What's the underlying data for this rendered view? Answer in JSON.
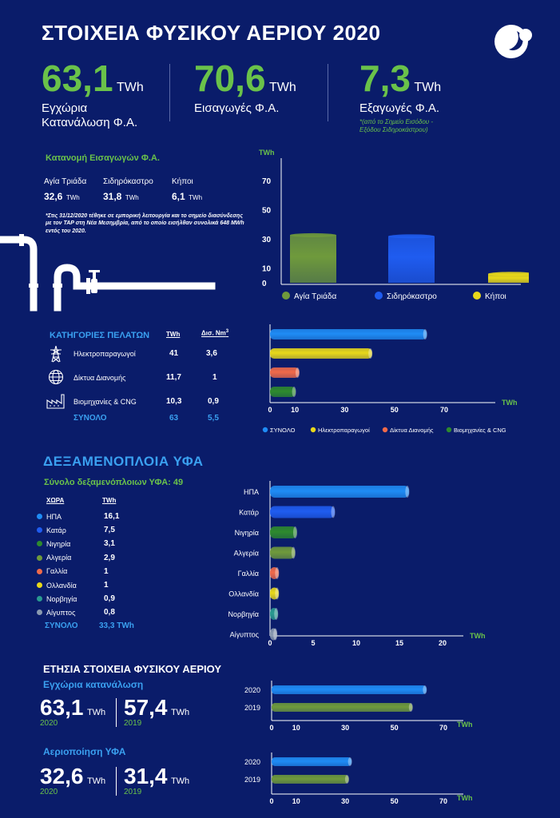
{
  "title": "ΣΤΟΙΧΕΙΑ ΦΥΣΙΚΟΥ ΑΕΡΙΟΥ 2020",
  "kpis": [
    {
      "value": "63,1",
      "unit": "TWh",
      "caption1": "Εγχώρια",
      "caption2": "Κατανάλωση Φ.Α."
    },
    {
      "value": "70,6",
      "unit": "TWh",
      "caption1": "Εισαγωγές Φ.Α.",
      "caption2": ""
    },
    {
      "value": "7,3",
      "unit": "TWh",
      "caption1": "Εξαγωγές Φ.Α.",
      "caption2": "",
      "note1": "*(από το Σημείο Εισόδου -",
      "note2": "Εξόδου Σιδηροκάστρου)"
    }
  ],
  "imports": {
    "heading": "Κατανομή Εισαγωγών Φ.Α.",
    "points": [
      {
        "name": "Αγία Τριάδα",
        "value": "32,6",
        "unit": "TWh"
      },
      {
        "name": "Σιδηρόκαστρο",
        "value": "31,8",
        "unit": "TWh"
      },
      {
        "name": "Κήποι",
        "value": "6,1",
        "unit": "TWh"
      }
    ],
    "note": "*Στις 31/12/2020 τέθηκε σε εμπορική λειτουργία και το σημείο διασύνδεσης με τον TAP στη Νέα Μεσημβρία, από το οποίο εισήλθαν συνολικά 648 MWh εντός του 2020."
  },
  "customers": {
    "heading": "ΚΑΤΗΓΟΡΙΕΣ ΠΕΛΑΤΩΝ",
    "col_twh": "TWh",
    "col_nm3": "Δισ. Nm",
    "col_nm3_sup": "3",
    "rows": [
      {
        "name": "Ηλεκτροπαραγωγοί",
        "twh": "41",
        "nm3": "3,6",
        "icon": "power-pylon-icon"
      },
      {
        "name": "Δίκτυα Διανομής",
        "twh": "11,7",
        "nm3": "1",
        "icon": "globe-network-icon"
      },
      {
        "name": "Βιομηχανίες & CNG",
        "twh": "10,3",
        "nm3": "0,9",
        "icon": "factory-icon"
      }
    ],
    "total_label": "ΣΥΝΟΛΟ",
    "total_twh": "63",
    "total_nm3": "5,5"
  },
  "lng": {
    "heading": "ΔΕΞΑΜΕΝΟΠΛΟΙΑ ΥΦΑ",
    "subheading": "Σύνολο δεξαμενόπλοιων ΥΦΑ: 49",
    "col_country": "ΧΩΡΑ",
    "col_twh": "TWh",
    "rows": [
      {
        "name": "ΗΠΑ",
        "value": "16,1"
      },
      {
        "name": "Κατάρ",
        "value": "7,5"
      },
      {
        "name": "Νιγηρία",
        "value": "3,1"
      },
      {
        "name": "Αλγερία",
        "value": "2,9"
      },
      {
        "name": "Γαλλία",
        "value": "1"
      },
      {
        "name": "Ολλανδία",
        "value": "1"
      },
      {
        "name": "Νορβηγία",
        "value": "0,9"
      },
      {
        "name": "Αίγυπτος",
        "value": "0,8"
      }
    ],
    "total_label": "ΣΥΝΟΛΟ",
    "total_value": "33,3 TWh"
  },
  "annual": {
    "heading": "ΕΤΗΣΙΑ ΣΤΟΙΧΕΙΑ ΦΥΣΙΚΟΥ ΑΕΡΙΟΥ",
    "consumption": {
      "heading": "Εγχώρια κατανάλωση",
      "v2020": "63,1",
      "v2019": "57,4",
      "unit": "TWh",
      "y2020": "2020",
      "y2019": "2019"
    },
    "lng_gas": {
      "heading": "Αεριοποίηση ΥΦΑ",
      "v2020": "32,6",
      "v2019": "31,4",
      "unit": "TWh",
      "y2020": "2020",
      "y2019": "2019"
    }
  },
  "colors": {
    "bg": "#0a1c6a",
    "green": "#6ac24a",
    "blue": "#3aa0f0",
    "bar_blue": "#1f8cf5",
    "bar_yellow": "#e8d81a",
    "bar_red": "#f06a4a",
    "bar_dkgreen": "#2e8a2e",
    "bar_olive": "#6f9a3c",
    "bar_teal": "#2a9a90",
    "bar_grey": "#8a9ab0"
  },
  "chart_data": [
    {
      "type": "bar",
      "orientation": "vertical",
      "categories": [
        "Αγία Τριάδα",
        "Σιδηρόκαστρο",
        "Κήποι"
      ],
      "values": [
        32.6,
        31.8,
        6.1
      ],
      "colors": [
        "#6f9a3c",
        "#1f5cf0",
        "#e8d81a"
      ],
      "ylabel": "TWh",
      "yticks": [
        0,
        10,
        30,
        50,
        70
      ],
      "ylim": [
        0,
        70
      ],
      "legend_placement": "bottom",
      "grid": false
    },
    {
      "type": "bar",
      "orientation": "horizontal",
      "categories": [
        "ΣΥΝΟΛΟ",
        "Ηλεκτροπαραγωγοί",
        "Δίκτυα Διανομής",
        "Βιομηχανίες & CNG"
      ],
      "values": [
        63,
        41,
        11.7,
        10.3
      ],
      "colors": [
        "#1f8cf5",
        "#e8d81a",
        "#f06a4a",
        "#2e8a2e"
      ],
      "xlabel": "TWh",
      "xticks": [
        0,
        10,
        30,
        50,
        70
      ],
      "xlim": [
        0,
        70
      ],
      "legend_placement": "bottom",
      "grid": false
    },
    {
      "type": "bar",
      "orientation": "horizontal",
      "categories": [
        "ΗΠΑ",
        "Κατάρ",
        "Νιγηρία",
        "Αλγερία",
        "Γαλλία",
        "Ολλανδία",
        "Νορβηγία",
        "Αίγυπτος"
      ],
      "values": [
        16.1,
        7.5,
        3.1,
        2.9,
        1,
        1,
        0.9,
        0.8
      ],
      "colors": [
        "#1f8cf5",
        "#1f5cf0",
        "#2e8a2e",
        "#6f9a3c",
        "#f06a4a",
        "#e8d81a",
        "#2a9a90",
        "#8a9ab0"
      ],
      "xlabel": "TWh",
      "xticks": [
        0,
        5,
        10,
        15,
        20
      ],
      "xlim": [
        0,
        20
      ],
      "grid": false
    },
    {
      "type": "bar",
      "orientation": "horizontal",
      "categories": [
        "2020",
        "2019"
      ],
      "values": [
        63.1,
        57.4
      ],
      "colors": [
        "#1f8cf5",
        "#6f9a3c"
      ],
      "xlabel": "TWh",
      "xticks": [
        0,
        10,
        30,
        50,
        70
      ],
      "xlim": [
        0,
        70
      ],
      "grid": false
    },
    {
      "type": "bar",
      "orientation": "horizontal",
      "categories": [
        "2020",
        "2019"
      ],
      "values": [
        32.6,
        31.4
      ],
      "colors": [
        "#1f8cf5",
        "#6f9a3c"
      ],
      "xlabel": "TWh",
      "xticks": [
        0,
        10,
        30,
        50,
        70
      ],
      "xlim": [
        0,
        70
      ],
      "grid": false
    }
  ]
}
